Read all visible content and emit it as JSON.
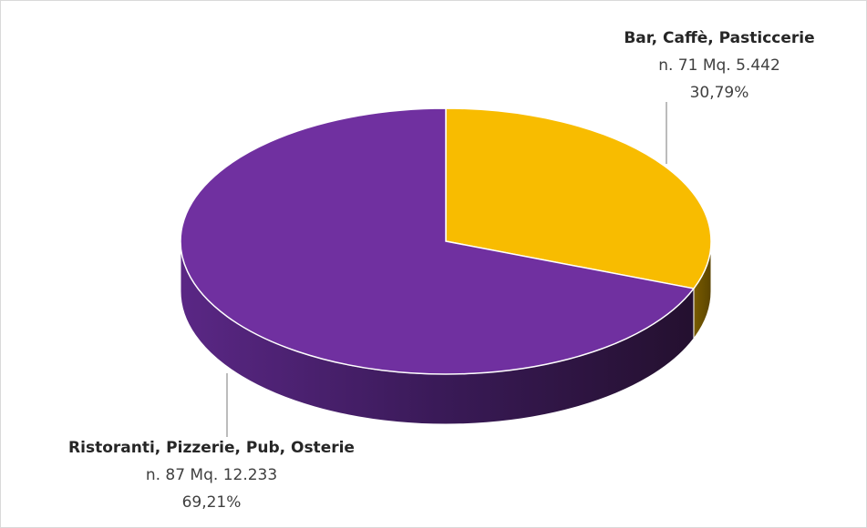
{
  "chart_data": {
    "type": "pie3d",
    "categories": [
      "Bar, Caffè, Pasticcerie",
      "Ristoranti, Pizzerie, Pub, Osterie"
    ],
    "details": [
      "n. 71 Mq. 5.442",
      "n. 87 Mq. 12.233"
    ],
    "values": [
      30.79,
      69.21
    ],
    "value_labels": [
      "30,79%",
      "69,21%"
    ],
    "colors": [
      "#f8bc00",
      "#7030a0"
    ]
  }
}
